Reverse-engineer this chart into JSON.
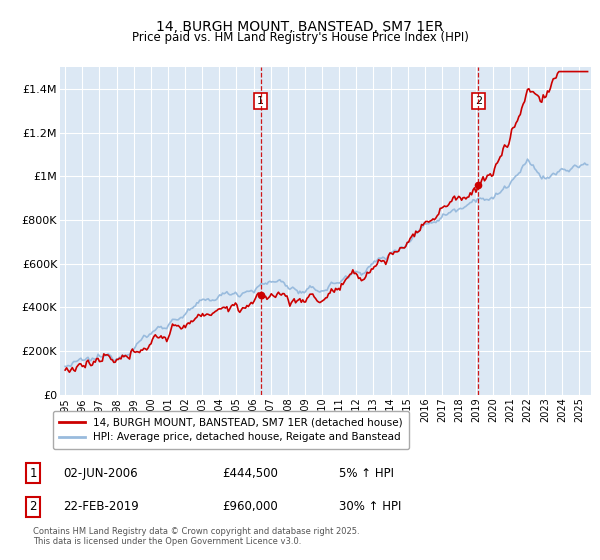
{
  "title": "14, BURGH MOUNT, BANSTEAD, SM7 1ER",
  "subtitle": "Price paid vs. HM Land Registry's House Price Index (HPI)",
  "footer": "Contains HM Land Registry data © Crown copyright and database right 2025.\nThis data is licensed under the Open Government Licence v3.0.",
  "legend_line1": "14, BURGH MOUNT, BANSTEAD, SM7 1ER (detached house)",
  "legend_line2": "HPI: Average price, detached house, Reigate and Banstead",
  "transaction1_date": "02-JUN-2006",
  "transaction1_price": "£444,500",
  "transaction1_hpi": "5% ↑ HPI",
  "transaction1_year": 2006.42,
  "transaction2_date": "22-FEB-2019",
  "transaction2_price": "£960,000",
  "transaction2_hpi": "30% ↑ HPI",
  "transaction2_year": 2019.13,
  "ylim": [
    0,
    1500000
  ],
  "yticks": [
    0,
    200000,
    400000,
    600000,
    800000,
    1000000,
    1200000,
    1400000
  ],
  "ytick_labels": [
    "£0",
    "£200K",
    "£400K",
    "£600K",
    "£800K",
    "£1M",
    "£1.2M",
    "£1.4M"
  ],
  "color_red": "#cc0000",
  "color_blue": "#99bbdd",
  "color_dashed": "#cc0000",
  "bg_color": "#dce8f4",
  "plot_bg": "#ffffff",
  "grid_color": "#ffffff",
  "outer_bg": "#f0f4f8"
}
